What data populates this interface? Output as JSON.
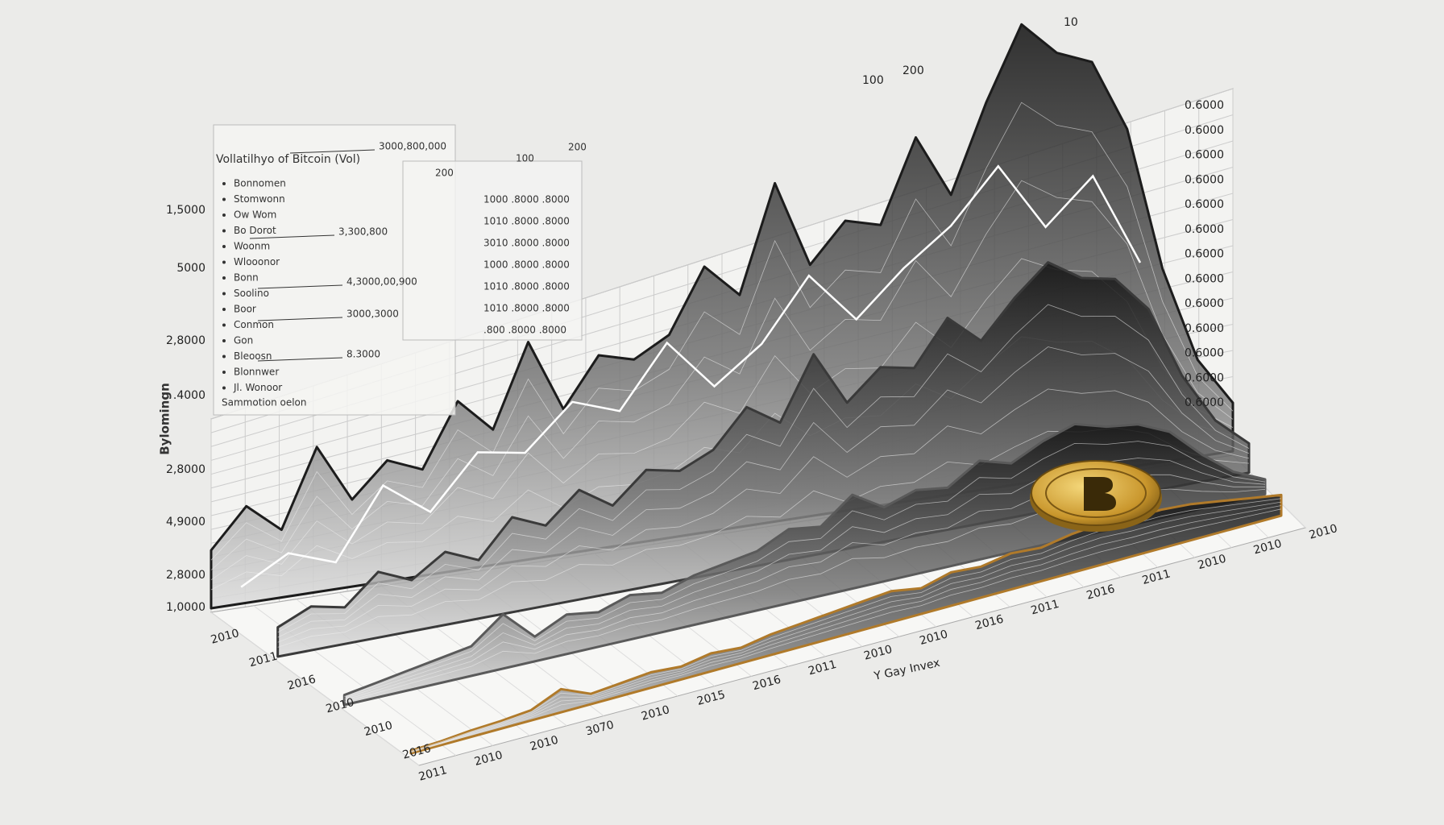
{
  "chart_data": {
    "type": "ridge3d",
    "title": "Vollatilhyo of Bitcoin (Vol)",
    "ylabel": "Bylomingn",
    "xlabel": "Y Gay Invex",
    "ylim": [
      0,
      100
    ],
    "ytick_labels": [
      "1,5000",
      "5000",
      "2,8000",
      ".4000",
      "2,8000",
      "4,9000",
      "2,8000",
      "1,0000"
    ],
    "y2tick_labels": [
      "0.6000",
      "0.6000",
      "0.6000",
      "0.6000",
      "0.6000",
      "0.6000",
      "0.6000",
      "0.6000",
      "0.6000",
      "0.6000",
      "0.6000",
      "0.6000",
      "0.6000"
    ],
    "top_labels": [
      "100",
      "200",
      "10"
    ],
    "depth_labels": [
      "2010",
      "2011",
      "2016",
      "2010",
      "2010",
      "2016"
    ],
    "x_labels": [
      "2011",
      "2010",
      "2010",
      "3070",
      "2010",
      "2015",
      "2016",
      "2011",
      "2010",
      "2010",
      "2016",
      "2011",
      "2016",
      "2011",
      "2010",
      "2010",
      "2010"
    ],
    "legend_items": [
      "Bonnomen",
      "Stomwonn",
      "Ow Wom",
      "Bo Dorot",
      "Woonm",
      "Wlooonor",
      "Bonn",
      "Soolino",
      "Boor",
      "Conmon",
      "Gon",
      "Bleoosn",
      "Blonnwer",
      "Jl. Wonoor"
    ],
    "legend_values": [
      "3000,800,000",
      "3,300,800",
      "4,3000,00,900",
      "3000,3000",
      "8.3000"
    ],
    "legend_note": "Sammotion oelon",
    "table_head": [
      "200",
      "100",
      "200"
    ],
    "table_rows": [
      "1000 .8000 .8000",
      "1010 .8000 .8000",
      "3010 .8000 .8000",
      "1000 .8000 .8000",
      "1010 .8000 .8000",
      "1010 .8000 .8000",
      ".800 .8000 .8000"
    ],
    "series": [
      {
        "color": "#1c1c1c",
        "values": [
          12,
          20,
          14,
          30,
          18,
          25,
          22,
          35,
          28,
          45,
          30,
          40,
          38,
          42,
          55,
          48,
          70,
          52,
          60,
          58,
          75,
          62,
          80,
          95,
          88,
          85,
          70,
          40,
          20,
          10
        ]
      },
      {
        "color": "#3a3a3a",
        "values": [
          8,
          12,
          10,
          18,
          14,
          20,
          16,
          26,
          22,
          30,
          24,
          32,
          30,
          34,
          44,
          38,
          55,
          40,
          48,
          46,
          58,
          50,
          60,
          68,
          62,
          60,
          50,
          30,
          16,
          8
        ]
      },
      {
        "color": "#5a5a5a",
        "values": [
          4,
          6,
          8,
          10,
          12,
          22,
          10,
          16,
          14,
          18,
          16,
          20,
          22,
          24,
          30,
          28,
          38,
          30,
          34,
          32,
          40,
          36,
          42,
          46,
          42,
          40,
          34,
          22,
          12,
          6
        ]
      },
      {
        "color": "#b07a2a",
        "values": [
          2,
          3,
          5,
          6,
          8,
          18,
          8,
          10,
          12,
          10,
          14,
          12,
          16,
          18,
          20,
          22,
          24,
          20,
          26,
          24,
          28,
          26,
          30,
          32,
          30,
          30,
          28,
          24,
          20,
          16
        ]
      }
    ],
    "line": {
      "color": "#ffffff",
      "values": [
        10,
        16,
        12,
        28,
        20,
        32,
        30,
        40,
        36,
        50,
        38,
        46,
        60,
        48,
        58,
        66,
        78,
        62,
        72,
        50
      ]
    }
  }
}
